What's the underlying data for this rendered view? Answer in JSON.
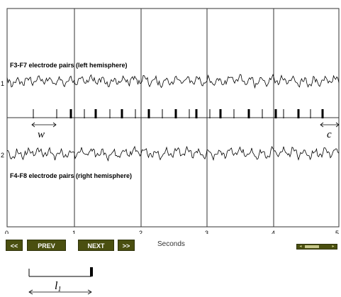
{
  "traces": [
    {
      "channel_number": "1",
      "title": "F3-F7 electrode pairs (left hemisphere)"
    },
    {
      "channel_number": "2",
      "title": "F4-F8 electrode pairs  (right hemisphere)"
    }
  ],
  "x_axis": {
    "ticks": [
      "0",
      "1",
      "2",
      "3",
      "4",
      "5"
    ],
    "label": "Seconds"
  },
  "window_labels": {
    "w": "w",
    "c": "c"
  },
  "controls": {
    "first": "<<",
    "prev": "PREV",
    "next": "NEXT",
    "last": ">>"
  },
  "scrollbar": {
    "left_arrow": "◂",
    "right_arrow": "▸"
  },
  "annotation": {
    "label": "l",
    "subscript": "1"
  },
  "colors": {
    "button_bg": "#4a4f10",
    "button_text": "#ffffff",
    "grid": "#333333",
    "trace": "#000000"
  }
}
